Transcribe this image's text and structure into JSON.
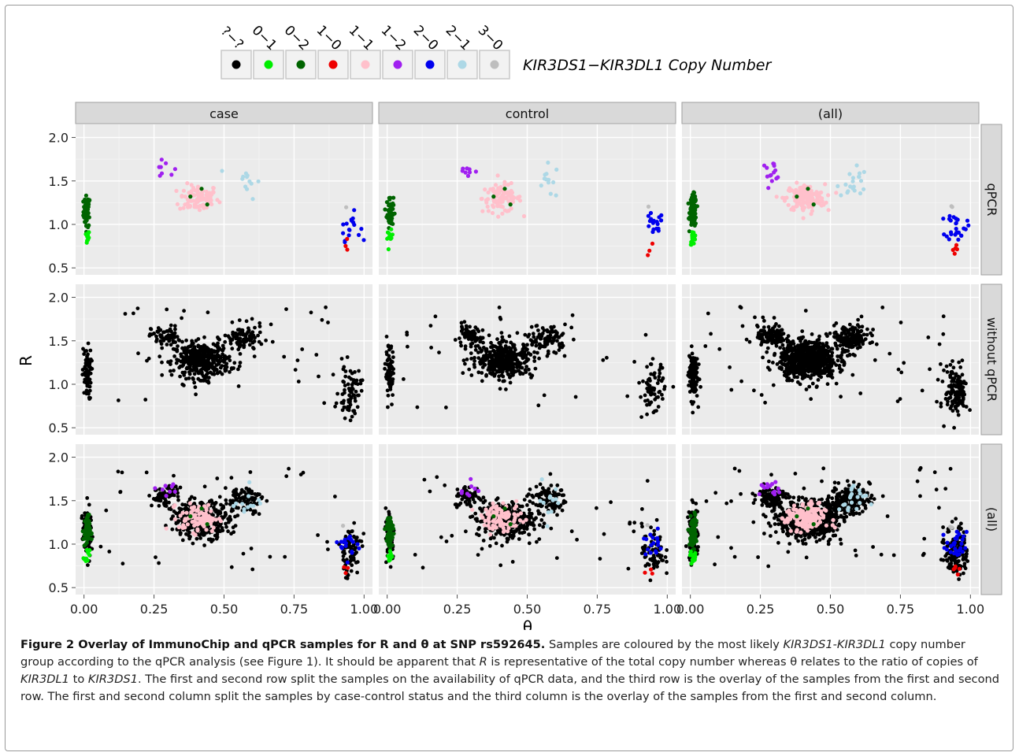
{
  "chart_data": {
    "type": "scatter",
    "xlabel": "θ",
    "ylabel": "R",
    "xlim": [
      -0.03,
      1.03
    ],
    "ylim": [
      0.42,
      2.15
    ],
    "xticks": [
      "0.00",
      "0.25",
      "0.50",
      "0.75",
      "1.00"
    ],
    "yticks": [
      "0.5",
      "1.0",
      "1.5",
      "2.0"
    ],
    "legend": {
      "title": "KIR3DS1−KIR3DL1 Copy Number",
      "placement": "top",
      "entries": [
        {
          "label": "?−?",
          "color": "#000000"
        },
        {
          "label": "0−1",
          "color": "#00ee00"
        },
        {
          "label": "0−2",
          "color": "#006400"
        },
        {
          "label": "1−0",
          "color": "#ee0000"
        },
        {
          "label": "1−1",
          "color": "#ffc0cb"
        },
        {
          "label": "1−2",
          "color": "#a020f0"
        },
        {
          "label": "2−0",
          "color": "#0000ee"
        },
        {
          "label": "2−1",
          "color": "#add8e6"
        },
        {
          "label": "3−0",
          "color": "#bebebe"
        }
      ]
    },
    "facet_columns": [
      "case",
      "control",
      "(all)"
    ],
    "facet_rows": [
      "qPCR",
      "without qPCR",
      "(all)"
    ],
    "grid": true,
    "clusters": {
      "qPCR": [
        {
          "group": "0−2",
          "theta": 0.01,
          "R": 1.15,
          "theta_sd": 0.006,
          "R_sd": 0.09
        },
        {
          "group": "0−1",
          "theta": 0.01,
          "R": 0.85,
          "theta_sd": 0.005,
          "R_sd": 0.04
        },
        {
          "group": "1−2",
          "theta": 0.29,
          "R": 1.62,
          "theta_sd": 0.02,
          "R_sd": 0.05
        },
        {
          "group": "1−1",
          "theta": 0.41,
          "R": 1.3,
          "theta_sd": 0.035,
          "R_sd": 0.08
        },
        {
          "group": "2−1",
          "theta": 0.58,
          "R": 1.5,
          "theta_sd": 0.025,
          "R_sd": 0.1
        },
        {
          "group": "2−0",
          "theta": 0.95,
          "R": 0.98,
          "theta_sd": 0.018,
          "R_sd": 0.08
        },
        {
          "group": "1−0",
          "theta": 0.94,
          "R": 0.72,
          "theta_sd": 0.01,
          "R_sd": 0.05
        },
        {
          "group": "3−0",
          "theta": 0.93,
          "R": 1.19,
          "theta_sd": 0.005,
          "R_sd": 0.02
        }
      ],
      "without_qPCR": [
        {
          "group": "?−?",
          "theta": 0.01,
          "R": 1.12,
          "theta_sd": 0.008,
          "R_sd": 0.15
        },
        {
          "group": "?−?",
          "theta": 0.29,
          "R": 1.55,
          "theta_sd": 0.025,
          "R_sd": 0.06
        },
        {
          "group": "?−?",
          "theta": 0.42,
          "R": 1.28,
          "theta_sd": 0.05,
          "R_sd": 0.1
        },
        {
          "group": "?−?",
          "theta": 0.57,
          "R": 1.52,
          "theta_sd": 0.035,
          "R_sd": 0.08
        },
        {
          "group": "?−?",
          "theta": 0.95,
          "R": 0.92,
          "theta_sd": 0.02,
          "R_sd": 0.15
        }
      ]
    }
  },
  "caption": {
    "title": "Figure 2 Overlay of ImmunoChip and qPCR samples for R and θ at SNP rs592645.",
    "s1": " Samples are coloured by the most likely ",
    "s1i": "KIR3DS1-KIR3DL1",
    "s2": " copy number group according to the qPCR analysis (see Figure 1). It should be apparent that ",
    "s2i": "R",
    "s3": " is representative of the total copy number whereas θ relates to the ratio of copies of ",
    "s3i": "KIR3DL1",
    "s4": " to ",
    "s4i": "KIR3DS1",
    "s5": ". The first and second row split the samples on the availability of qPCR data, and the third row is the overlay of the samples from the first and second row. The first and second column split the samples by case-control status and the third column is the overlay of the samples from the first and second column."
  }
}
